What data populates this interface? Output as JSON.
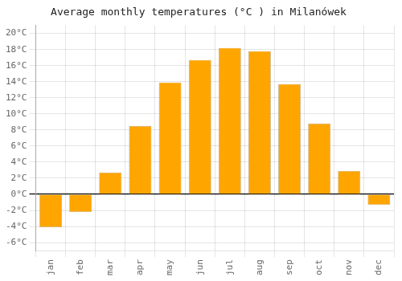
{
  "chart_data": {
    "type": "bar",
    "title": "Average monthly temperatures (°C ) in Milanówek",
    "categories": [
      "jan",
      "feb",
      "mar",
      "apr",
      "may",
      "jun",
      "jul",
      "aug",
      "sep",
      "oct",
      "nov",
      "dec"
    ],
    "values": [
      -4.1,
      -2.2,
      2.7,
      8.5,
      13.9,
      16.7,
      18.2,
      17.8,
      13.7,
      8.8,
      2.9,
      -1.3
    ],
    "color": "#FFA500",
    "ylim": [
      -7,
      21
    ],
    "yticks": [
      {
        "value": -6,
        "label": "-6°C"
      },
      {
        "value": -4,
        "label": "-4°C"
      },
      {
        "value": -2,
        "label": "-2°C"
      },
      {
        "value": 0,
        "label": "0°C"
      },
      {
        "value": 2,
        "label": "2°C"
      },
      {
        "value": 4,
        "label": "4°C"
      },
      {
        "value": 6,
        "label": "6°C"
      },
      {
        "value": 8,
        "label": "8°C"
      },
      {
        "value": 10,
        "label": "10°C"
      },
      {
        "value": 12,
        "label": "12°C"
      },
      {
        "value": 14,
        "label": "14°C"
      },
      {
        "value": 16,
        "label": "16°C"
      },
      {
        "value": 18,
        "label": "18°C"
      },
      {
        "value": 20,
        "label": "20°C"
      }
    ],
    "grid": true
  }
}
